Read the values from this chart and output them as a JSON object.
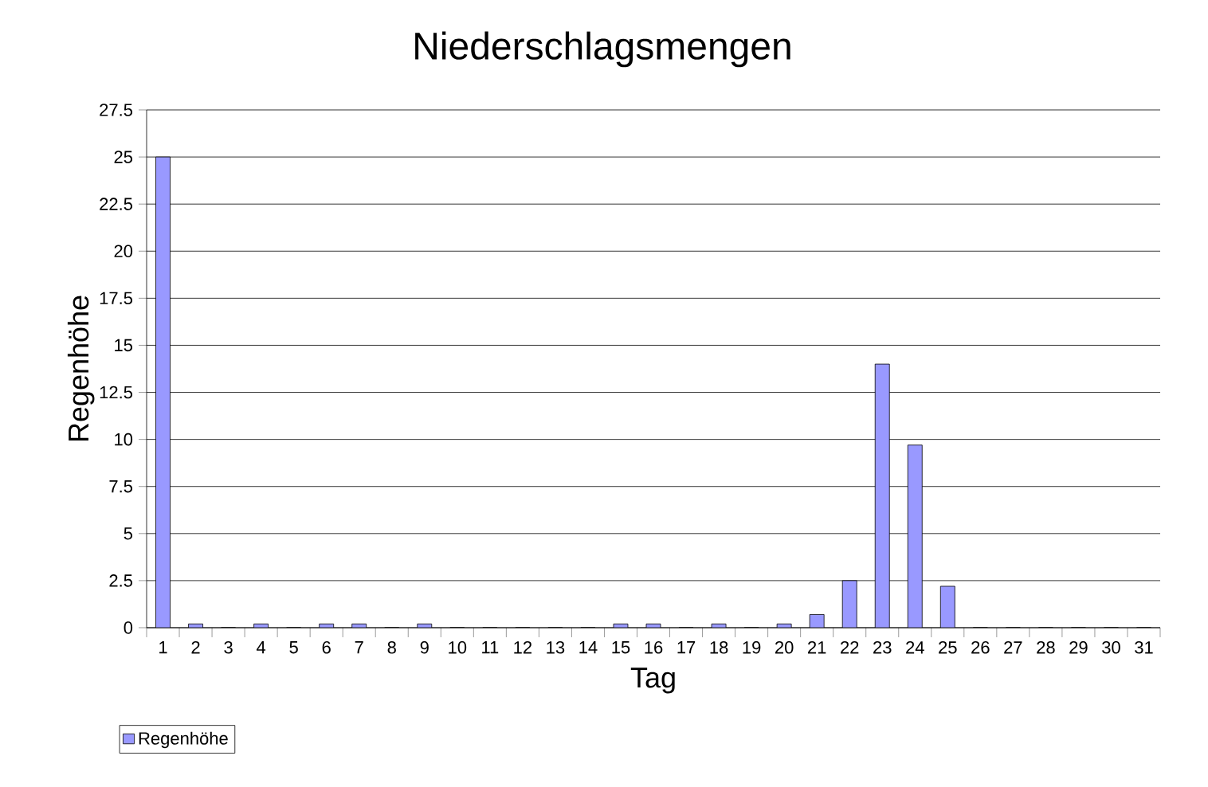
{
  "chart_data": {
    "type": "bar",
    "title": "Niederschlagsmengen",
    "xlabel": "Tag",
    "ylabel": "Regenhöhe",
    "categories": [
      "1",
      "2",
      "3",
      "4",
      "5",
      "6",
      "7",
      "8",
      "9",
      "10",
      "11",
      "12",
      "13",
      "14",
      "15",
      "16",
      "17",
      "18",
      "19",
      "20",
      "21",
      "22",
      "23",
      "24",
      "25",
      "26",
      "27",
      "28",
      "29",
      "30",
      "31"
    ],
    "series": [
      {
        "name": "Regenhöhe",
        "color": "#9999ff",
        "values": [
          25,
          0.2,
          0,
          0.2,
          0,
          0.2,
          0.2,
          0,
          0.2,
          0,
          0,
          0,
          0,
          0,
          0.2,
          0.2,
          0,
          0.2,
          0,
          0.2,
          0.7,
          2.5,
          14,
          9.7,
          2.2,
          0,
          0,
          0,
          0,
          0,
          0
        ]
      }
    ],
    "ylim": [
      0,
      27.5
    ],
    "yticks": [
      0,
      2.5,
      5,
      7.5,
      10,
      12.5,
      15,
      17.5,
      20,
      22.5,
      25,
      27.5
    ],
    "grid": "y",
    "legend": "bottom left"
  }
}
